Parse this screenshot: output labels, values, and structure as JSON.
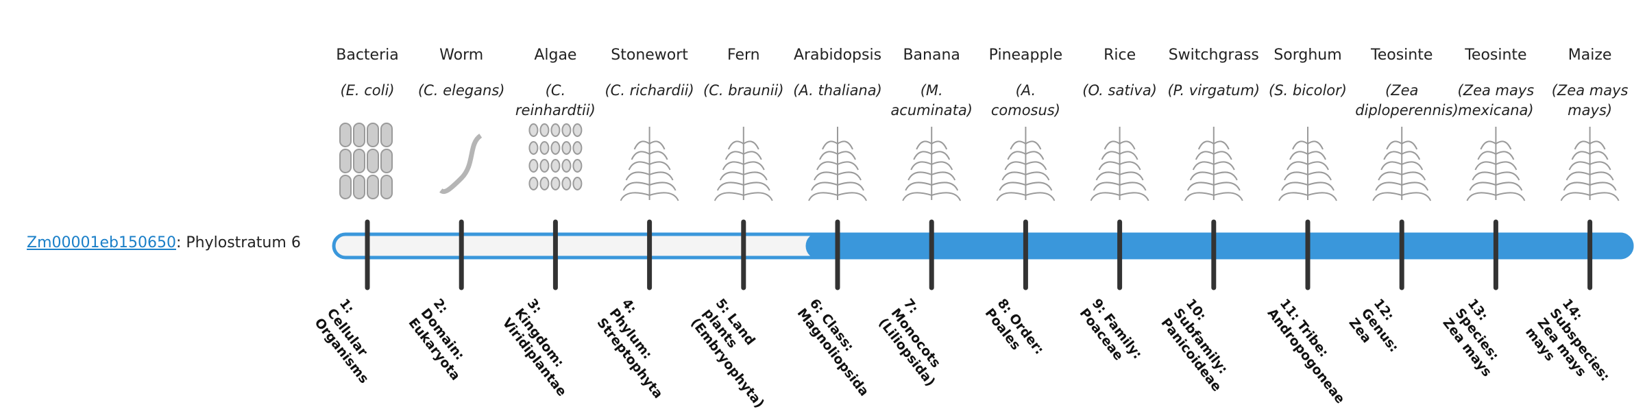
{
  "gene": {
    "id": "Zm00001eb150650",
    "label": ": Phylostratum",
    "stratum": 6
  },
  "taxa": [
    {
      "name": "Bacteria",
      "species": "(E. coli)",
      "rank": "1: Cellular Organisms"
    },
    {
      "name": "Worm",
      "species": "(C. elegans)",
      "rank": "2: Domain: Eukaryota"
    },
    {
      "name": "Algae",
      "species": "(C. reinhardtii)",
      "rank": "3: Kingdom: Viridiplantae"
    },
    {
      "name": "Stonewort",
      "species": "(C. richardii)",
      "rank": "4: Phylum: Streptophyta"
    },
    {
      "name": "Fern",
      "species": "(C. braunii)",
      "rank": "5: Land plants (Embryophyta)"
    },
    {
      "name": "Arabidopsis",
      "species": "(A. thaliana)",
      "rank": "6: Class: Magnoliopsida"
    },
    {
      "name": "Banana",
      "species": "(M. acuminata)",
      "rank": "7: Monocots (Liliopsida)"
    },
    {
      "name": "Pineapple",
      "species": "(A. comosus)",
      "rank": "8: Order: Poales"
    },
    {
      "name": "Rice",
      "species": "(O. sativa)",
      "rank": "9: Family: Poaceae"
    },
    {
      "name": "Switchgrass",
      "species": "(P. virgatum)",
      "rank": "10: Subfamily: Panicoideae"
    },
    {
      "name": "Sorghum",
      "species": "(S. bicolor)",
      "rank": "11: Tribe: Andropogoneae"
    },
    {
      "name": "Teosinte",
      "species": "(Zea diploperennis)",
      "rank": "12: Genus: Zea"
    },
    {
      "name": "Teosinte",
      "species": "(Zea mays mexicana)",
      "rank": "13: Species: Zea mays"
    },
    {
      "name": "Maize",
      "species": "(Zea mays mays)",
      "rank": "14: Subspecies: Zea mays mays"
    }
  ]
}
